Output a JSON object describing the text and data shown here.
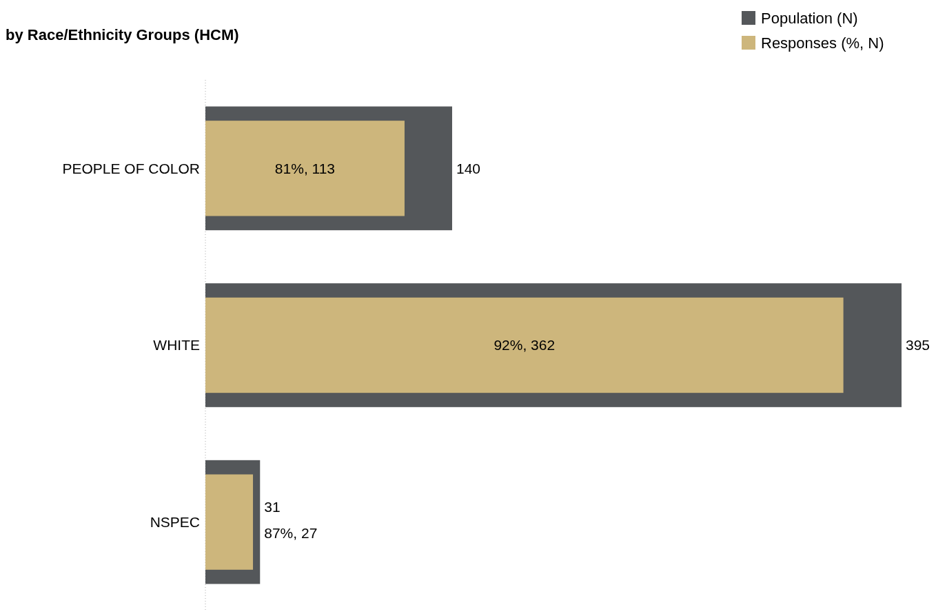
{
  "chart_data": {
    "type": "bar",
    "orientation": "horizontal",
    "title": "by Race/Ethnicity Groups (HCM)",
    "categories": [
      "PEOPLE OF COLOR",
      "WHITE",
      "NSPEC"
    ],
    "series": [
      {
        "name": "Population (N)",
        "color": "#54575a",
        "values": [
          140,
          395,
          31
        ],
        "value_labels": [
          "140",
          "395",
          "31"
        ]
      },
      {
        "name": "Responses (%, N)",
        "color": "#cdb67c",
        "values": [
          113,
          362,
          27
        ],
        "value_labels": [
          "81%, 113",
          "92%, 362",
          "87%, 27"
        ]
      }
    ],
    "legend": "top right"
  }
}
